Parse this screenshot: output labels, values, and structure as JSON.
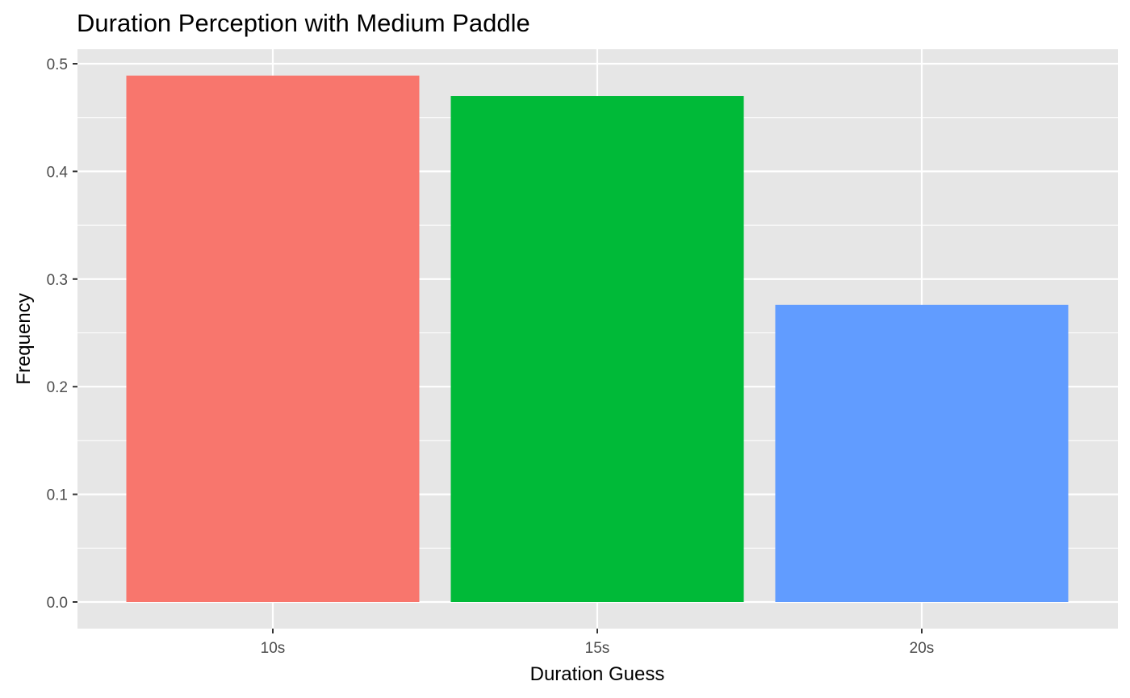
{
  "chart_data": {
    "type": "bar",
    "title": "Duration Perception with Medium Paddle",
    "xlabel": "Duration Guess",
    "ylabel": "Frequency",
    "categories": [
      "10s",
      "15s",
      "20s"
    ],
    "values": [
      0.489,
      0.47,
      0.276
    ],
    "colors": [
      "#F8766D",
      "#00BA38",
      "#619CFF"
    ],
    "ylim": [
      0,
      0.5
    ],
    "yticks": [
      "0.0",
      "0.1",
      "0.2",
      "0.3",
      "0.4",
      "0.5"
    ],
    "panel_background": "#e6e6e6",
    "grid": true,
    "legend": "none"
  }
}
